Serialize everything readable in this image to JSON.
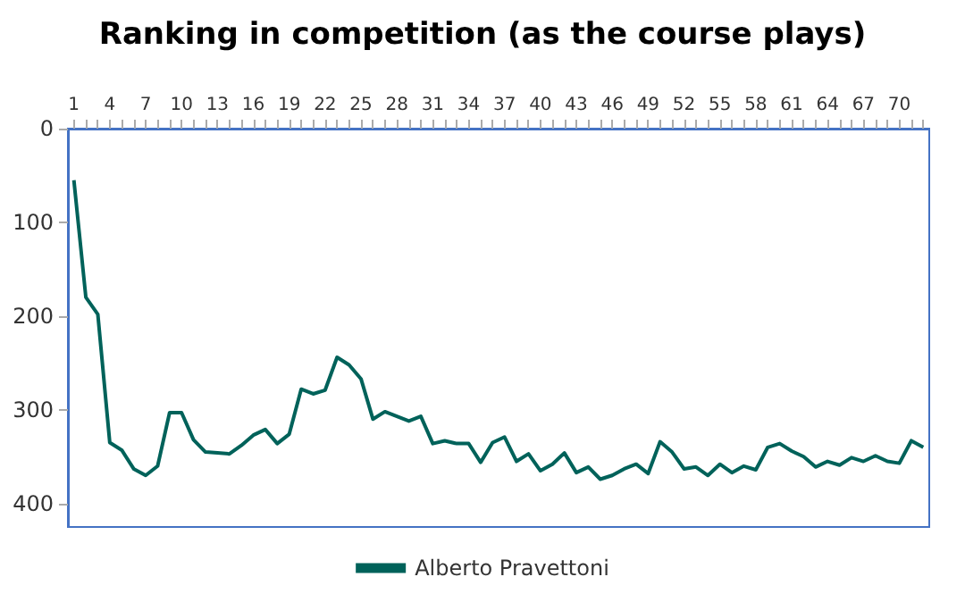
{
  "chart_data": {
    "type": "line",
    "title": "Ranking in competition (as the course plays)",
    "categories": [
      "1",
      null,
      null,
      "4",
      null,
      null,
      "7",
      null,
      null,
      "10",
      null,
      null,
      "13",
      null,
      null,
      "16",
      null,
      null,
      "19",
      null,
      null,
      "22",
      null,
      null,
      "25",
      null,
      null,
      "28",
      null,
      null,
      "31",
      null,
      null,
      "34",
      null,
      null,
      "37",
      null,
      null,
      "40",
      null,
      null,
      "43",
      null,
      null,
      "46",
      null,
      null,
      "49",
      null,
      null,
      "52",
      null,
      null,
      "55",
      null,
      null,
      "58",
      null,
      null,
      "61",
      null,
      null,
      "64",
      null,
      null,
      "67",
      null,
      null,
      "70",
      null,
      null
    ],
    "series": [
      {
        "name": "Alberto Pravettoni",
        "color": "#00625a",
        "values": [
          55,
          180,
          198,
          335,
          343,
          363,
          370,
          360,
          303,
          303,
          332,
          345,
          346,
          347,
          338,
          327,
          321,
          336,
          326,
          278,
          283,
          279,
          244,
          252,
          267,
          310,
          302,
          307,
          312,
          307,
          336,
          333,
          336,
          336,
          356,
          335,
          329,
          355,
          347,
          365,
          358,
          346,
          367,
          361,
          374,
          370,
          363,
          358,
          368,
          334,
          345,
          363,
          361,
          370,
          358,
          367,
          360,
          364,
          340,
          336,
          344,
          350,
          361,
          355,
          359,
          351,
          355,
          349,
          355,
          357,
          333,
          340
        ]
      }
    ],
    "ylim": [
      425,
      0
    ],
    "yticks": [
      0,
      100,
      200,
      300,
      400
    ],
    "grid": false,
    "legend": "bottom",
    "marker": "none",
    "line_style": "solid"
  }
}
